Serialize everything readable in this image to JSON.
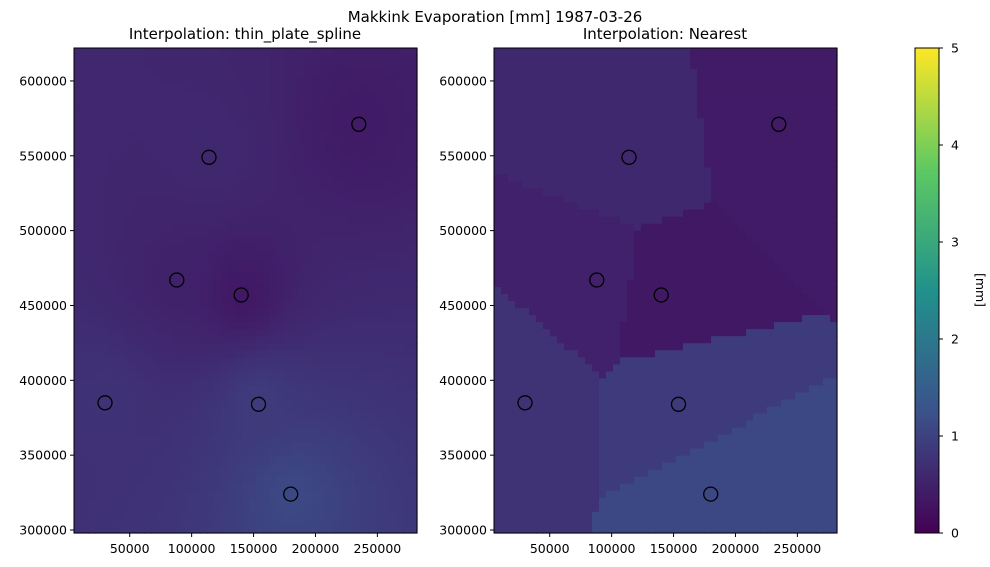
{
  "figure_title": "Makkink Evaporation [mm] 1987-03-26",
  "colors": {
    "viridis": [
      "#440154",
      "#3b528b",
      "#21918c",
      "#5ec962",
      "#fde725"
    ],
    "station_marker_edge": "#000000"
  },
  "chart_data": [
    {
      "type": "heatmap",
      "title": "Interpolation: thin_plate_spline",
      "xlabel": "",
      "ylabel": "",
      "xlim": [
        5000,
        282000
      ],
      "ylim": [
        298000,
        622000
      ],
      "xticks": [
        50000,
        100000,
        150000,
        200000,
        250000
      ],
      "yticks": [
        300000,
        350000,
        400000,
        450000,
        500000,
        550000,
        600000
      ],
      "stations": [
        {
          "x": 30000,
          "y": 385000
        },
        {
          "x": 88000,
          "y": 467000
        },
        {
          "x": 114000,
          "y": 549000
        },
        {
          "x": 140000,
          "y": 457000
        },
        {
          "x": 154000,
          "y": 384000
        },
        {
          "x": 180000,
          "y": 324000
        },
        {
          "x": 235000,
          "y": 571000
        }
      ],
      "station_values_mm": [
        0.75,
        0.5,
        0.6,
        0.35,
        0.9,
        1.1,
        0.4
      ]
    },
    {
      "type": "heatmap",
      "title": "Interpolation: Nearest",
      "xlabel": "",
      "ylabel": "",
      "xlim": [
        5000,
        282000
      ],
      "ylim": [
        298000,
        622000
      ],
      "xticks": [
        50000,
        100000,
        150000,
        200000,
        250000
      ],
      "yticks": [
        300000,
        350000,
        400000,
        450000,
        500000,
        550000,
        600000
      ],
      "stations": [
        {
          "x": 30000,
          "y": 385000
        },
        {
          "x": 88000,
          "y": 467000
        },
        {
          "x": 114000,
          "y": 549000
        },
        {
          "x": 140000,
          "y": 457000
        },
        {
          "x": 154000,
          "y": 384000
        },
        {
          "x": 180000,
          "y": 324000
        },
        {
          "x": 235000,
          "y": 571000
        }
      ],
      "station_values_mm": [
        0.75,
        0.5,
        0.6,
        0.35,
        0.9,
        1.1,
        0.4
      ]
    }
  ],
  "colorbar": {
    "label": "[mm]",
    "range": [
      0,
      5
    ],
    "ticks": [
      0,
      1,
      2,
      3,
      4,
      5
    ],
    "colormap": "viridis"
  }
}
